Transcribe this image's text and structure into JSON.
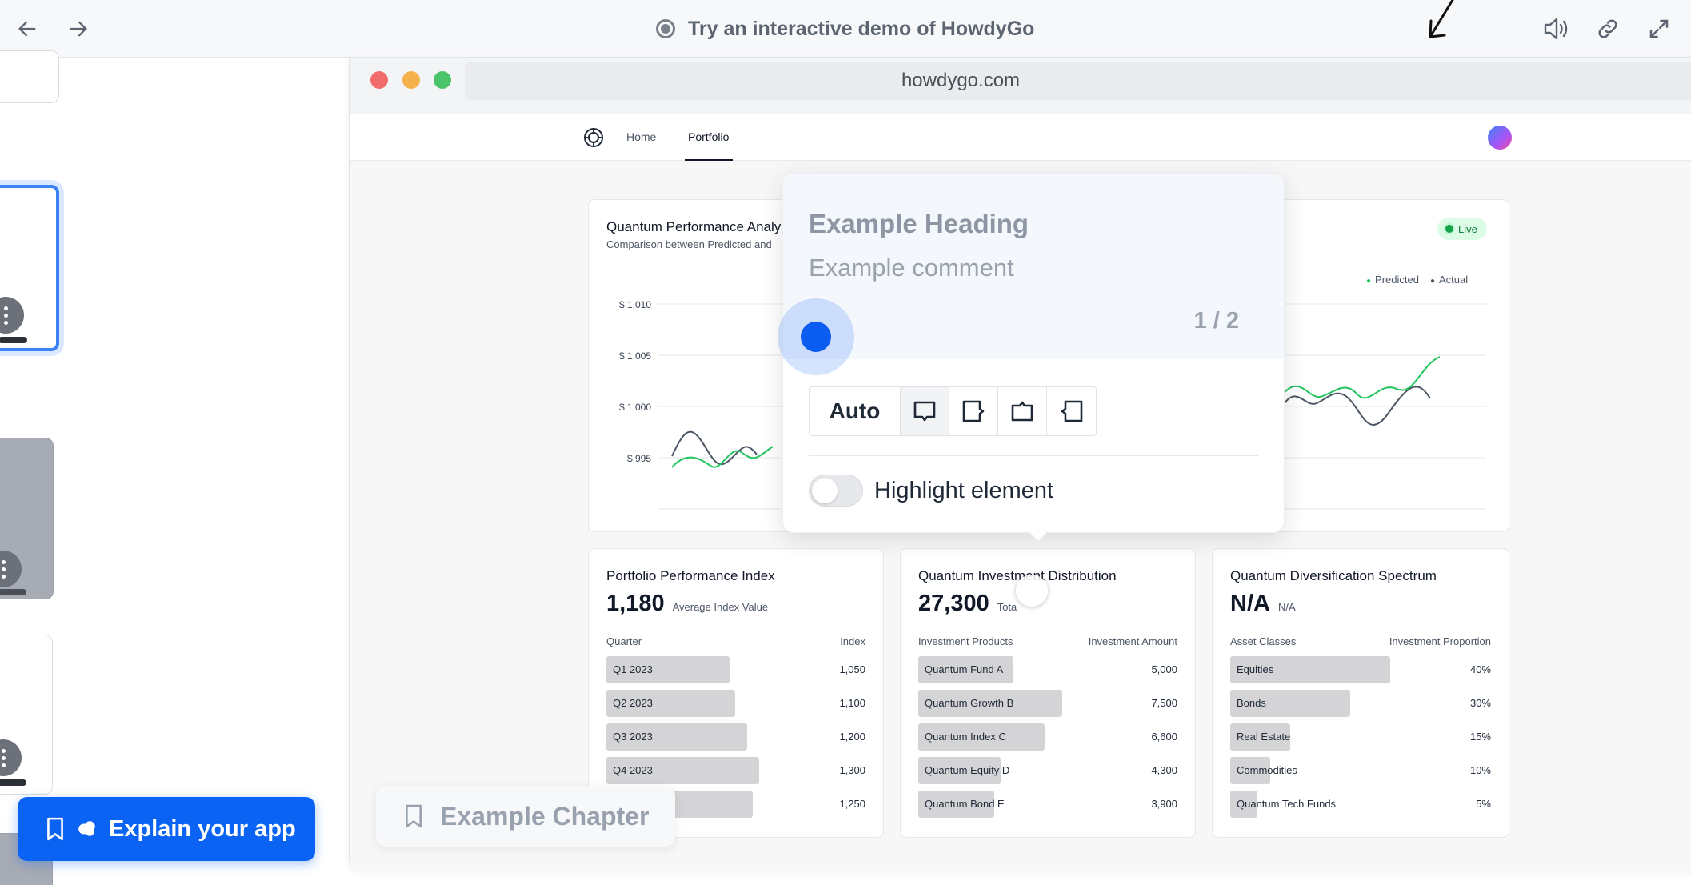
{
  "topbar": {
    "title": "Try an interactive demo of HowdyGo",
    "icons": [
      "back-arrow-icon",
      "forward-arrow-icon",
      "record-icon",
      "speaker-icon",
      "link-icon",
      "expand-icon"
    ]
  },
  "sidebar": {
    "explain_button": "Explain your app"
  },
  "browser": {
    "url": "howdygo.com",
    "nav": {
      "home": "Home",
      "portfolio": "Portfolio"
    }
  },
  "chart_card": {
    "title": "Quantum Performance Analy",
    "subtitle": "Comparison between Predicted and",
    "live_badge": "Live",
    "legend": {
      "predicted": "Predicted",
      "actual": "Actual"
    },
    "y_ticks": [
      "$ 1,010",
      "$ 1,005",
      "$ 1,000",
      "$ 995"
    ]
  },
  "cards": [
    {
      "title": "Portfolio Performance Index",
      "value": "1,180",
      "value_label": "Average Index Value",
      "col_left": "Quarter",
      "col_right": "Index",
      "rows": [
        {
          "label": "Q1 2023",
          "value": "1,050",
          "fill": 0.7
        },
        {
          "label": "Q2 2023",
          "value": "1,100",
          "fill": 0.73
        },
        {
          "label": "Q3 2023",
          "value": "1,200",
          "fill": 0.8
        },
        {
          "label": "Q4 2023",
          "value": "1,300",
          "fill": 0.87
        },
        {
          "label": "",
          "value": "1,250",
          "fill": 0.83
        }
      ]
    },
    {
      "title": "Quantum Investment Distribution",
      "value": "27,300",
      "value_label": "Tota",
      "col_left": "Investment Products",
      "col_right": "Investment Amount",
      "rows": [
        {
          "label": "Quantum Fund A",
          "value": "5,000",
          "fill": 0.54
        },
        {
          "label": "Quantum Growth B",
          "value": "7,500",
          "fill": 0.82
        },
        {
          "label": "Quantum Index C",
          "value": "6,600",
          "fill": 0.72
        },
        {
          "label": "Quantum Equity D",
          "value": "4,300",
          "fill": 0.47
        },
        {
          "label": "Quantum Bond E",
          "value": "3,900",
          "fill": 0.43
        }
      ]
    },
    {
      "title": "Quantum Diversification Spectrum",
      "value": "N/A",
      "value_label": "N/A",
      "col_left": "Asset Classes",
      "col_right": "Investment Proportion",
      "rows": [
        {
          "label": "Equities",
          "value": "40%",
          "fill": 0.4
        },
        {
          "label": "Bonds",
          "value": "30%",
          "fill": 0.3
        },
        {
          "label": "Real Estate",
          "value": "15%",
          "fill": 0.15
        },
        {
          "label": "Commodities",
          "value": "10%",
          "fill": 0.1
        },
        {
          "label": "Quantum Tech Funds",
          "value": "5%",
          "fill": 0.05
        }
      ]
    }
  ],
  "popover": {
    "heading": "Example Heading",
    "comment": "Example comment",
    "counter": "1 / 2",
    "auto_option": "Auto",
    "toggle_label": "Highlight element"
  },
  "chapter": {
    "label": "Example Chapter"
  },
  "colors": {
    "accent": "#0b63f3",
    "predicted_line": "#22c55e",
    "actual_line": "#4b5563",
    "live_badge_bg": "#dcfce7"
  }
}
